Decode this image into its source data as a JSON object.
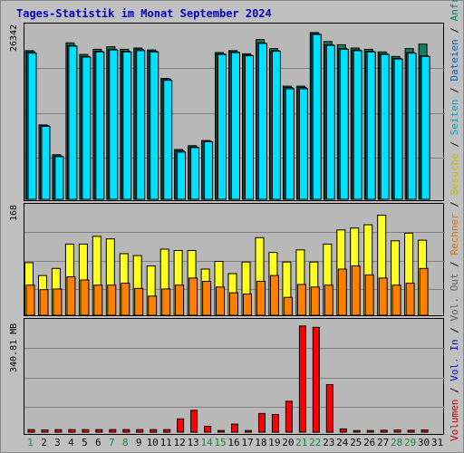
{
  "title": "Tages-Statistik im Monat September 2024",
  "legend": [
    {
      "text": "Volumen",
      "color": "#c00000"
    },
    {
      "text": " / ",
      "color": "#000000"
    },
    {
      "text": "Vol. In",
      "color": "#0000c0"
    },
    {
      "text": " / ",
      "color": "#000000"
    },
    {
      "text": "Vol. Out",
      "color": "#606060"
    },
    {
      "text": " / ",
      "color": "#000000"
    },
    {
      "text": "Rechner",
      "color": "#e07000"
    },
    {
      "text": " / ",
      "color": "#000000"
    },
    {
      "text": "Besuche",
      "color": "#c0c000"
    },
    {
      "text": " / ",
      "color": "#000000"
    },
    {
      "text": "Seiten",
      "color": "#00a0c0"
    },
    {
      "text": " / ",
      "color": "#000000"
    },
    {
      "text": "Dateien",
      "color": "#0060c0"
    },
    {
      "text": " / ",
      "color": "#000000"
    },
    {
      "text": "Anfragen",
      "color": "#008060"
    }
  ],
  "colors": {
    "anfragen": "#108060",
    "dateien": "#0090b0",
    "seiten": "#00e0ff",
    "besuche": "#ffff20",
    "rechner": "#ff8000",
    "volumen": "#ff0000",
    "weekend_tick": "#208040",
    "weekday_tick": "#000000"
  },
  "chart_data": [
    {
      "type": "bar",
      "ylabel": "26342",
      "ylim": [
        0,
        26342
      ],
      "categories": [
        "1",
        "2",
        "3",
        "4",
        "5",
        "6",
        "7",
        "8",
        "9",
        "10",
        "11",
        "12",
        "13",
        "14",
        "15",
        "16",
        "17",
        "18",
        "19",
        "20",
        "21",
        "22",
        "23",
        "24",
        "25",
        "26",
        "27",
        "28",
        "29",
        "30",
        "31"
      ],
      "series": [
        {
          "name": "Anfragen",
          "values": [
            23000,
            11500,
            6900,
            24200,
            22400,
            23200,
            23600,
            23200,
            23400,
            23100,
            18700,
            7700,
            8300,
            9100,
            22700,
            23000,
            22500,
            24700,
            23300,
            17500,
            17500,
            25800,
            24400,
            23900,
            23400,
            23200,
            22800,
            22100,
            23300,
            24000,
            null
          ]
        },
        {
          "name": "Dateien",
          "values": [
            22800,
            11400,
            6700,
            23800,
            22100,
            22900,
            23200,
            22900,
            23200,
            22900,
            18600,
            7500,
            8100,
            9000,
            22500,
            22800,
            22300,
            24200,
            23000,
            17300,
            17300,
            25600,
            23900,
            23300,
            23100,
            22900,
            22500,
            21800,
            22700,
            22200,
            null
          ]
        },
        {
          "name": "Seiten",
          "values": [
            22600,
            11300,
            6600,
            23700,
            22000,
            22800,
            23100,
            22800,
            23000,
            22800,
            18400,
            7300,
            8000,
            8900,
            22400,
            22700,
            22200,
            24100,
            22900,
            17100,
            17100,
            25500,
            23800,
            23200,
            23000,
            22800,
            22400,
            21700,
            22600,
            22100,
            null
          ]
        }
      ]
    },
    {
      "type": "bar",
      "ylabel": "168",
      "ylim": [
        0,
        168
      ],
      "categories": [
        "1",
        "2",
        "3",
        "4",
        "5",
        "6",
        "7",
        "8",
        "9",
        "10",
        "11",
        "12",
        "13",
        "14",
        "15",
        "16",
        "17",
        "18",
        "19",
        "20",
        "21",
        "22",
        "23",
        "24",
        "25",
        "26",
        "27",
        "28",
        "29",
        "30",
        "31"
      ],
      "series": [
        {
          "name": "Besuche",
          "values": [
            82,
            62,
            73,
            111,
            111,
            123,
            119,
            96,
            93,
            77,
            103,
            101,
            101,
            72,
            84,
            65,
            83,
            121,
            98,
            83,
            102,
            83,
            111,
            133,
            136,
            141,
            156,
            116,
            128,
            117,
            null
          ]
        },
        {
          "name": "Rechner",
          "values": [
            47,
            40,
            41,
            60,
            55,
            47,
            47,
            50,
            42,
            30,
            41,
            47,
            58,
            53,
            44,
            35,
            33,
            53,
            62,
            28,
            48,
            44,
            47,
            72,
            77,
            63,
            58,
            47,
            50,
            73,
            null
          ]
        }
      ]
    },
    {
      "type": "bar",
      "ylabel": "340.81 MB",
      "ylim": [
        0,
        340.81
      ],
      "categories": [
        "1",
        "2",
        "3",
        "4",
        "5",
        "6",
        "7",
        "8",
        "9",
        "10",
        "11",
        "12",
        "13",
        "14",
        "15",
        "16",
        "17",
        "18",
        "19",
        "20",
        "21",
        "22",
        "23",
        "24",
        "25",
        "26",
        "27",
        "28",
        "29",
        "30",
        "31"
      ],
      "series": [
        {
          "name": "Volumen",
          "values": [
            8,
            7,
            8,
            8,
            8,
            8,
            8,
            8,
            8,
            8,
            8,
            41,
            68,
            18,
            5,
            25,
            5,
            58,
            55,
            96,
            330,
            326,
            148,
            10,
            5,
            5,
            6,
            7,
            6,
            7,
            null
          ]
        }
      ]
    }
  ],
  "x_ticks": [
    {
      "label": "1",
      "weekend": true
    },
    {
      "label": "2",
      "weekend": false
    },
    {
      "label": "3",
      "weekend": false
    },
    {
      "label": "4",
      "weekend": false
    },
    {
      "label": "5",
      "weekend": false
    },
    {
      "label": "6",
      "weekend": false
    },
    {
      "label": "7",
      "weekend": true
    },
    {
      "label": "8",
      "weekend": true
    },
    {
      "label": "9",
      "weekend": false
    },
    {
      "label": "10",
      "weekend": false
    },
    {
      "label": "11",
      "weekend": false
    },
    {
      "label": "12",
      "weekend": false
    },
    {
      "label": "13",
      "weekend": false
    },
    {
      "label": "14",
      "weekend": true
    },
    {
      "label": "15",
      "weekend": true
    },
    {
      "label": "16",
      "weekend": false
    },
    {
      "label": "17",
      "weekend": false
    },
    {
      "label": "18",
      "weekend": false
    },
    {
      "label": "19",
      "weekend": false
    },
    {
      "label": "20",
      "weekend": false
    },
    {
      "label": "21",
      "weekend": true
    },
    {
      "label": "22",
      "weekend": true
    },
    {
      "label": "23",
      "weekend": false
    },
    {
      "label": "24",
      "weekend": false
    },
    {
      "label": "25",
      "weekend": false
    },
    {
      "label": "26",
      "weekend": false
    },
    {
      "label": "27",
      "weekend": false
    },
    {
      "label": "28",
      "weekend": true
    },
    {
      "label": "29",
      "weekend": true
    },
    {
      "label": "30",
      "weekend": false
    },
    {
      "label": "31",
      "weekend": false
    }
  ]
}
